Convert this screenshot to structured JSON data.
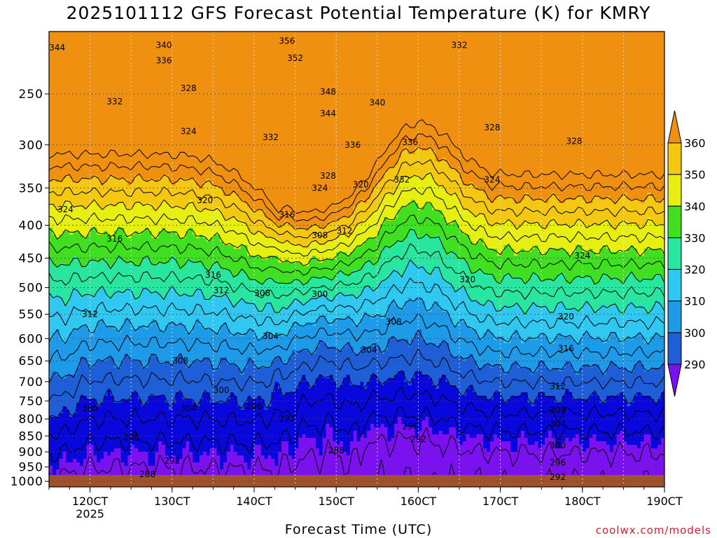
{
  "chart_data": {
    "type": "contour",
    "title": "2025101112 GFS Forecast Potential Temperature (K) for KMRY",
    "xlabel": "Forecast Time (UTC)",
    "ylabel": "",
    "x_ticks": [
      "120CT",
      "130CT",
      "140CT",
      "150CT",
      "160CT",
      "170CT",
      "180CT",
      "190CT"
    ],
    "x_subtick": "2025",
    "x_range_days": [
      11.5,
      19.0
    ],
    "y_ticks": [
      250,
      300,
      350,
      400,
      450,
      500,
      550,
      600,
      650,
      700,
      750,
      800,
      850,
      900,
      950,
      1000
    ],
    "y_range_hPa": [
      200,
      1020
    ],
    "y_scale": "log-pressure",
    "grid": true,
    "colorbar": {
      "levels": [
        290,
        300,
        310,
        320,
        330,
        340,
        350,
        360
      ],
      "colors": [
        "#7b10f0",
        "#0808dc",
        "#1e5fd8",
        "#1e9be8",
        "#2ec8f0",
        "#28e6a0",
        "#40e020",
        "#e6ef10",
        "#f4c810",
        "#f09010"
      ]
    },
    "contour_labels": [
      {
        "t": 11.6,
        "p": 212,
        "v": "344"
      },
      {
        "t": 12.9,
        "p": 210,
        "v": "340"
      },
      {
        "t": 12.9,
        "p": 222,
        "v": "336"
      },
      {
        "t": 12.3,
        "p": 257,
        "v": "332"
      },
      {
        "t": 13.2,
        "p": 245,
        "v": "328"
      },
      {
        "t": 13.2,
        "p": 286,
        "v": "324"
      },
      {
        "t": 13.4,
        "p": 366,
        "v": "320"
      },
      {
        "t": 11.7,
        "p": 378,
        "v": "324"
      },
      {
        "t": 12.3,
        "p": 420,
        "v": "316"
      },
      {
        "t": 13.5,
        "p": 478,
        "v": "316"
      },
      {
        "t": 13.6,
        "p": 505,
        "v": "312"
      },
      {
        "t": 12.0,
        "p": 550,
        "v": "312"
      },
      {
        "t": 14.1,
        "p": 510,
        "v": "308"
      },
      {
        "t": 13.1,
        "p": 650,
        "v": "308"
      },
      {
        "t": 14.2,
        "p": 595,
        "v": "304"
      },
      {
        "t": 13.2,
        "p": 770,
        "v": "304"
      },
      {
        "t": 13.6,
        "p": 722,
        "v": "300"
      },
      {
        "t": 12.0,
        "p": 770,
        "v": "300"
      },
      {
        "t": 14.0,
        "p": 765,
        "v": "296"
      },
      {
        "t": 12.5,
        "p": 855,
        "v": "296"
      },
      {
        "t": 14.4,
        "p": 800,
        "v": "292"
      },
      {
        "t": 13.0,
        "p": 930,
        "v": "292"
      },
      {
        "t": 12.7,
        "p": 975,
        "v": "288"
      },
      {
        "t": 14.4,
        "p": 207,
        "v": "356"
      },
      {
        "t": 14.5,
        "p": 220,
        "v": "352"
      },
      {
        "t": 14.9,
        "p": 248,
        "v": "348"
      },
      {
        "t": 14.9,
        "p": 268,
        "v": "344"
      },
      {
        "t": 15.5,
        "p": 258,
        "v": "340"
      },
      {
        "t": 15.2,
        "p": 300,
        "v": "336"
      },
      {
        "t": 14.2,
        "p": 292,
        "v": "332"
      },
      {
        "t": 14.9,
        "p": 335,
        "v": "328"
      },
      {
        "t": 14.8,
        "p": 350,
        "v": "324"
      },
      {
        "t": 15.3,
        "p": 346,
        "v": "320"
      },
      {
        "t": 14.4,
        "p": 385,
        "v": "316"
      },
      {
        "t": 14.8,
        "p": 415,
        "v": "308"
      },
      {
        "t": 15.1,
        "p": 408,
        "v": "312"
      },
      {
        "t": 14.8,
        "p": 512,
        "v": "300"
      },
      {
        "t": 16.5,
        "p": 210,
        "v": "332"
      },
      {
        "t": 15.8,
        "p": 340,
        "v": "332"
      },
      {
        "t": 15.9,
        "p": 297,
        "v": "336"
      },
      {
        "t": 16.9,
        "p": 282,
        "v": "328"
      },
      {
        "t": 17.9,
        "p": 296,
        "v": "328"
      },
      {
        "t": 16.9,
        "p": 340,
        "v": "324"
      },
      {
        "t": 18.0,
        "p": 446,
        "v": "324"
      },
      {
        "t": 16.6,
        "p": 486,
        "v": "320"
      },
      {
        "t": 17.8,
        "p": 555,
        "v": "320"
      },
      {
        "t": 15.7,
        "p": 565,
        "v": "308"
      },
      {
        "t": 15.4,
        "p": 625,
        "v": "304"
      },
      {
        "t": 17.8,
        "p": 622,
        "v": "316"
      },
      {
        "t": 17.7,
        "p": 712,
        "v": "312"
      },
      {
        "t": 17.7,
        "p": 775,
        "v": "308"
      },
      {
        "t": 17.7,
        "p": 815,
        "v": "304"
      },
      {
        "t": 17.7,
        "p": 880,
        "v": "300"
      },
      {
        "t": 17.7,
        "p": 935,
        "v": "296"
      },
      {
        "t": 17.7,
        "p": 985,
        "v": "292"
      },
      {
        "t": 15.9,
        "p": 822,
        "v": "296"
      },
      {
        "t": 16.0,
        "p": 860,
        "v": "292"
      },
      {
        "t": 15.0,
        "p": 895,
        "v": "288"
      }
    ]
  },
  "credit": "coolwx.com/models"
}
